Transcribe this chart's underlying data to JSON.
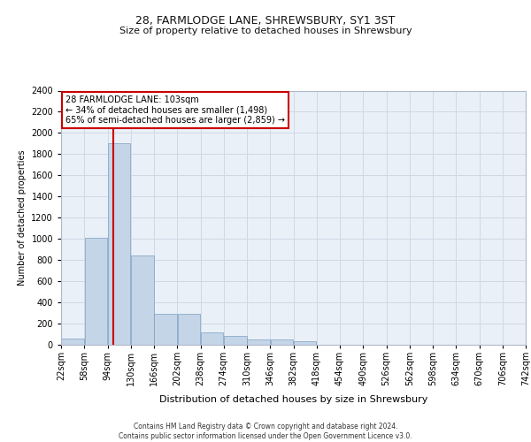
{
  "title1": "28, FARMLODGE LANE, SHREWSBURY, SY1 3ST",
  "title2": "Size of property relative to detached houses in Shrewsbury",
  "xlabel": "Distribution of detached houses by size in Shrewsbury",
  "ylabel": "Number of detached properties",
  "annotation_line1": "28 FARMLODGE LANE: 103sqm",
  "annotation_line2": "← 34% of detached houses are smaller (1,498)",
  "annotation_line3": "65% of semi-detached houses are larger (2,859) →",
  "footer1": "Contains HM Land Registry data © Crown copyright and database right 2024.",
  "footer2": "Contains public sector information licensed under the Open Government Licence v3.0.",
  "property_size": 103,
  "bin_starts": [
    22,
    58,
    94,
    130,
    166,
    202,
    238,
    274,
    310,
    346,
    382,
    418,
    454,
    490,
    526,
    562,
    598,
    634,
    670,
    706
  ],
  "bin_labels": [
    "22sqm",
    "58sqm",
    "94sqm",
    "130sqm",
    "166sqm",
    "202sqm",
    "238sqm",
    "274sqm",
    "310sqm",
    "346sqm",
    "382sqm",
    "418sqm",
    "454sqm",
    "490sqm",
    "526sqm",
    "562sqm",
    "598sqm",
    "634sqm",
    "670sqm",
    "706sqm",
    "742sqm"
  ],
  "bar_values": [
    60,
    1010,
    1900,
    840,
    290,
    290,
    115,
    80,
    50,
    50,
    30,
    0,
    0,
    0,
    0,
    0,
    0,
    0,
    0,
    0
  ],
  "bar_color": "#c5d5e8",
  "bar_edge_color": "#7a9fc0",
  "grid_color": "#d0d8e4",
  "bg_color": "#eaf0f8",
  "vline_color": "#cc0000",
  "annotation_box_color": "#cc0000",
  "ylim": [
    0,
    2400
  ],
  "yticks": [
    0,
    200,
    400,
    600,
    800,
    1000,
    1200,
    1400,
    1600,
    1800,
    2000,
    2200,
    2400
  ],
  "title1_fontsize": 9,
  "title2_fontsize": 8,
  "ylabel_fontsize": 7,
  "xlabel_fontsize": 8,
  "tick_fontsize": 7,
  "annot_fontsize": 7,
  "footer_fontsize": 5.5
}
